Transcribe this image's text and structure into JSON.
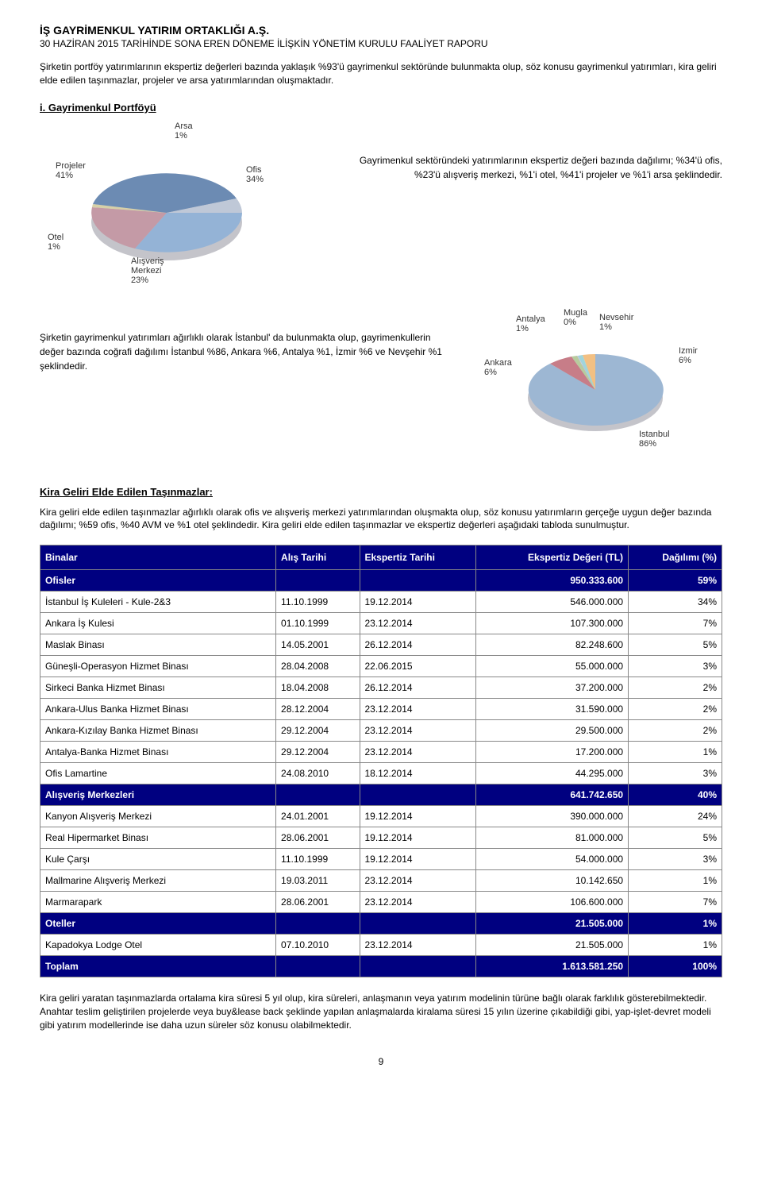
{
  "header": {
    "title": "İŞ GAYRİMENKUL YATIRIM ORTAKLIĞI A.Ş.",
    "subtitle": "30 HAZİRAN 2015 TARİHİNDE SONA EREN DÖNEME İLİŞKİN YÖNETİM KURULU FAALİYET RAPORU"
  },
  "intro": "Şirketin portföy yatırımlarının ekspertiz değerleri bazında yaklaşık %93'ü gayrimenkul sektöründe bulunmakta olup, söz konusu gayrimenkul yatırımları, kira geliri elde edilen taşınmazlar,  projeler ve arsa yatırımlarından oluşmaktadır.",
  "section1": {
    "heading": "i. Gayrimenkul Portföyü",
    "chart": {
      "type": "pie-3d",
      "slices": [
        {
          "label": "Ofis",
          "value": 34,
          "color": "#94b3d6"
        },
        {
          "label": "Alışveriş Merkezi",
          "value": 23,
          "color": "#c49aa6"
        },
        {
          "label": "Otel",
          "value": 1,
          "color": "#d6d0a8"
        },
        {
          "label": "Projeler",
          "value": 41,
          "color": "#6c8bb3"
        },
        {
          "label": "Arsa",
          "value": 1,
          "color": "#bfc8d7"
        }
      ],
      "label_arsa": "Arsa\n1%",
      "label_projeler": "Projeler\n41%",
      "label_ofis": "Ofis\n34%",
      "label_otel": "Otel\n1%",
      "label_avm": "Alışveriş\nMerkezi\n23%",
      "label_fontsize": 11,
      "background_color": "#ffffff"
    },
    "desc": "Gayrimenkul sektöründeki yatırımlarının ekspertiz değeri bazında dağılımı; %34'ü ofis, %23'ü alışveriş merkezi, %1'i otel, %41'i projeler ve %1'i arsa şeklindedir."
  },
  "section2": {
    "desc": "Şirketin gayrimenkul yatırımları ağırlıklı olarak İstanbul' da bulunmakta olup, gayrimenkullerin değer bazında coğrafi dağılımı İstanbul %86, Ankara %6, Antalya %1, İzmir %6 ve Nevşehir %1 şeklindedir.",
    "chart": {
      "type": "pie-3d",
      "slices": [
        {
          "label": "Istanbul",
          "value": 86,
          "color": "#9db7d3"
        },
        {
          "label": "Ankara",
          "value": 6,
          "color": "#c77d88"
        },
        {
          "label": "Antalya",
          "value": 1,
          "color": "#b7cc9e"
        },
        {
          "label": "Mugla",
          "value": 0,
          "color": "#cabedf"
        },
        {
          "label": "Nevsehir",
          "value": 1,
          "color": "#a0d5db"
        },
        {
          "label": "Izmir",
          "value": 6,
          "color": "#f2c083"
        }
      ],
      "label_mugla": "Mugla\n0%",
      "label_antalya": "Antalya\n1%",
      "label_nevsehir": "Nevsehir\n1%",
      "label_ankara": "Ankara\n6%",
      "label_izmir": "Izmir\n6%",
      "label_istanbul": "Istanbul\n86%",
      "label_fontsize": 11,
      "background_color": "#ffffff"
    }
  },
  "kira": {
    "heading": "Kira Geliri Elde Edilen Taşınmazlar:",
    "text": "Kira geliri elde edilen taşınmazlar ağırlıklı olarak ofis ve alışveriş merkezi yatırımlarından oluşmakta olup, söz konusu yatırımların gerçeğe uygun değer bazında dağılımı; %59 ofis, %40 AVM ve %1 otel şeklindedir. Kira geliri elde edilen taşınmazlar ve ekspertiz değerleri aşağıdaki tabloda sunulmuştur."
  },
  "table": {
    "columns": [
      "Binalar",
      "Alış Tarihi",
      "Ekspertiz Tarihi",
      "Ekspertiz Değeri (TL)",
      "Dağılımı (%)"
    ],
    "header_bg": "#000080",
    "header_color": "#ffffff",
    "border_color": "#888888",
    "rows": [
      {
        "type": "subtotal",
        "cells": [
          "Ofisler",
          "",
          "",
          "950.333.600",
          "59%"
        ]
      },
      {
        "type": "data",
        "cells": [
          "İstanbul İş Kuleleri - Kule-2&3",
          "11.10.1999",
          "19.12.2014",
          "546.000.000",
          "34%"
        ]
      },
      {
        "type": "data",
        "cells": [
          "Ankara İş Kulesi",
          "01.10.1999",
          "23.12.2014",
          "107.300.000",
          "7%"
        ]
      },
      {
        "type": "data",
        "cells": [
          "Maslak Binası",
          "14.05.2001",
          "26.12.2014",
          "82.248.600",
          "5%"
        ]
      },
      {
        "type": "data",
        "cells": [
          "Güneşli-Operasyon Hizmet Binası",
          "28.04.2008",
          "22.06.2015",
          "55.000.000",
          "3%"
        ]
      },
      {
        "type": "data",
        "cells": [
          "Sirkeci Banka Hizmet Binası",
          "18.04.2008",
          "26.12.2014",
          "37.200.000",
          "2%"
        ]
      },
      {
        "type": "data",
        "cells": [
          "Ankara-Ulus Banka Hizmet Binası",
          "28.12.2004",
          "23.12.2014",
          "31.590.000",
          "2%"
        ]
      },
      {
        "type": "data",
        "cells": [
          "Ankara-Kızılay Banka Hizmet Binası",
          "29.12.2004",
          "23.12.2014",
          "29.500.000",
          "2%"
        ]
      },
      {
        "type": "data",
        "cells": [
          "Antalya-Banka Hizmet Binası",
          "29.12.2004",
          "23.12.2014",
          "17.200.000",
          "1%"
        ]
      },
      {
        "type": "data",
        "cells": [
          "Ofis Lamartine",
          "24.08.2010",
          "18.12.2014",
          "44.295.000",
          "3%"
        ]
      },
      {
        "type": "subtotal",
        "cells": [
          "Alışveriş Merkezleri",
          "",
          "",
          "641.742.650",
          "40%"
        ]
      },
      {
        "type": "data",
        "cells": [
          "Kanyon Alışveriş Merkezi",
          "24.01.2001",
          "19.12.2014",
          "390.000.000",
          "24%"
        ]
      },
      {
        "type": "data",
        "cells": [
          "Real Hipermarket Binası",
          "28.06.2001",
          "19.12.2014",
          "81.000.000",
          "5%"
        ]
      },
      {
        "type": "data",
        "cells": [
          "Kule Çarşı",
          "11.10.1999",
          "19.12.2014",
          "54.000.000",
          "3%"
        ]
      },
      {
        "type": "data",
        "cells": [
          "Mallmarine Alışveriş Merkezi",
          "19.03.2011",
          "23.12.2014",
          "10.142.650",
          "1%"
        ]
      },
      {
        "type": "data",
        "cells": [
          "Marmarapark",
          "28.06.2001",
          "23.12.2014",
          "106.600.000",
          "7%"
        ]
      },
      {
        "type": "subtotal",
        "cells": [
          "Oteller",
          "",
          "",
          "21.505.000",
          "1%"
        ]
      },
      {
        "type": "data",
        "cells": [
          "Kapadokya Lodge Otel",
          "07.10.2010",
          "23.12.2014",
          "21.505.000",
          "1%"
        ]
      },
      {
        "type": "total",
        "cells": [
          "Toplam",
          "",
          "",
          "1.613.581.250",
          "100%"
        ]
      }
    ]
  },
  "footer": "Kira geliri yaratan taşınmazlarda ortalama kira süresi 5 yıl olup, kira süreleri, anlaşmanın veya yatırım modelinin türüne bağlı olarak farklılık gösterebilmektedir. Anahtar teslim geliştirilen projelerde veya buy&lease back şeklinde yapılan anlaşmalarda kiralama süresi 15 yılın üzerine çıkabildiği gibi, yap-işlet-devret modeli gibi yatırım modellerinde ise daha uzun süreler söz konusu olabilmektedir.",
  "page_number": "9"
}
